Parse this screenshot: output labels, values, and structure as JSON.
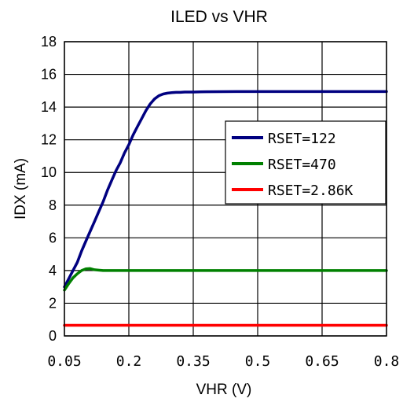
{
  "chart_data": {
    "type": "line",
    "title": "ILED vs VHR",
    "xlabel": "VHR (V)",
    "ylabel": "IDX (mA)",
    "xlim": [
      0.05,
      0.8
    ],
    "ylim": [
      0,
      18
    ],
    "xticks": [
      "0.05",
      "0.2",
      "0.35",
      "0.5",
      "0.65",
      "0.8"
    ],
    "yticks": [
      "0",
      "2",
      "4",
      "6",
      "8",
      "10",
      "12",
      "14",
      "16",
      "18"
    ],
    "grid": true,
    "legend": "right",
    "series": [
      {
        "name": "RSET=122",
        "color": "#000080",
        "x": [
          0.05,
          0.06,
          0.07,
          0.08,
          0.09,
          0.1,
          0.11,
          0.12,
          0.13,
          0.14,
          0.15,
          0.16,
          0.17,
          0.18,
          0.19,
          0.2,
          0.21,
          0.22,
          0.23,
          0.24,
          0.25,
          0.26,
          0.27,
          0.28,
          0.29,
          0.3,
          0.31,
          0.32,
          0.33,
          0.35,
          0.38,
          0.45,
          0.55,
          0.65,
          0.8
        ],
        "values": [
          3.0,
          3.5,
          4.0,
          4.5,
          5.2,
          5.8,
          6.4,
          7.0,
          7.6,
          8.2,
          8.9,
          9.5,
          10.1,
          10.6,
          11.2,
          11.7,
          12.3,
          12.8,
          13.3,
          13.8,
          14.2,
          14.5,
          14.7,
          14.8,
          14.85,
          14.88,
          14.9,
          14.9,
          14.92,
          14.92,
          14.94,
          14.95,
          14.95,
          14.95,
          14.95
        ]
      },
      {
        "name": "RSET=470",
        "color": "#008000",
        "x": [
          0.05,
          0.06,
          0.07,
          0.08,
          0.09,
          0.1,
          0.11,
          0.12,
          0.14,
          0.2,
          0.35,
          0.5,
          0.65,
          0.8
        ],
        "values": [
          2.8,
          3.2,
          3.55,
          3.8,
          4.0,
          4.1,
          4.12,
          4.05,
          4.0,
          4.0,
          4.0,
          4.0,
          4.0,
          4.0
        ]
      },
      {
        "name": "RSET=2.86K",
        "color": "#ff0000",
        "x": [
          0.05,
          0.2,
          0.35,
          0.5,
          0.65,
          0.8
        ],
        "values": [
          0.65,
          0.65,
          0.65,
          0.65,
          0.65,
          0.65
        ]
      }
    ]
  }
}
